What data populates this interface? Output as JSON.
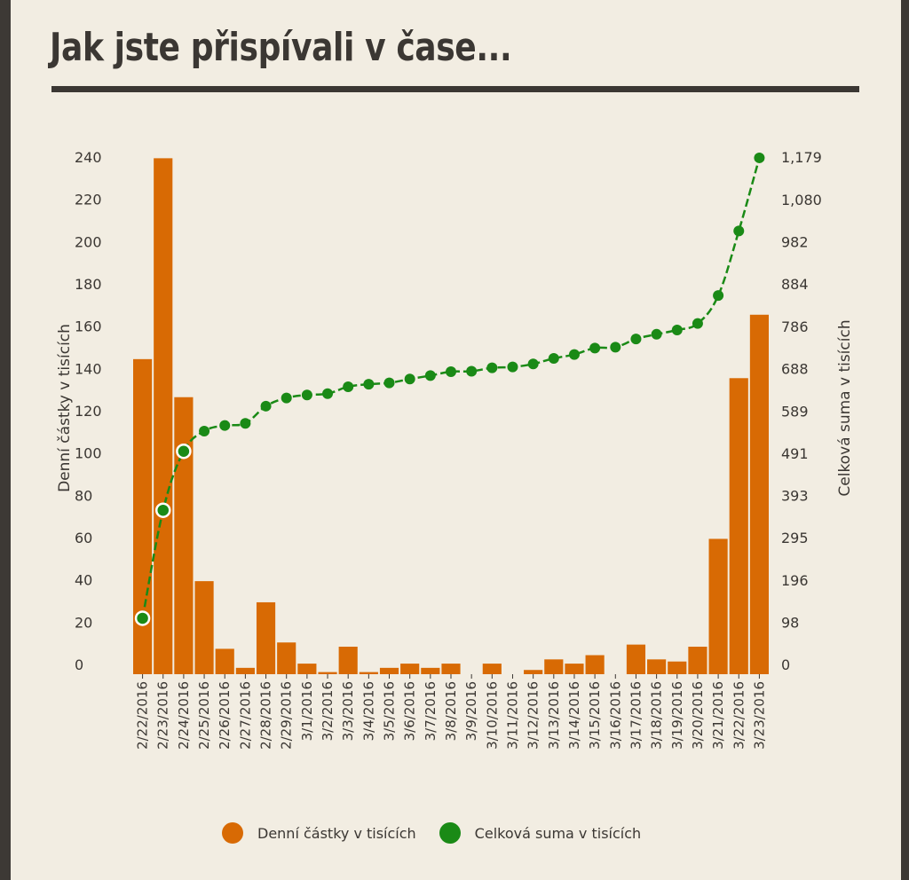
{
  "page": {
    "title": "Jak jste přispívali v čase..."
  },
  "colors": {
    "bar": "#d86a04",
    "line": "#1a8a16",
    "text": "#3b3733",
    "background": "#f2ede2"
  },
  "chart_data": {
    "type": "bar",
    "title": "Jak jste přispívali v čase...",
    "categories": [
      "2/22/2016",
      "2/23/2016",
      "2/24/2016",
      "2/25/2016",
      "2/26/2016",
      "2/27/2016",
      "2/28/2016",
      "2/29/2016",
      "3/1/2016",
      "3/2/2016",
      "3/3/2016",
      "3/4/2016",
      "3/5/2016",
      "3/6/2016",
      "3/7/2016",
      "3/8/2016",
      "3/9/2016",
      "3/10/2016",
      "3/11/2016",
      "3/12/2016",
      "3/13/2016",
      "3/14/2016",
      "3/15/2016",
      "3/16/2016",
      "3/17/2016",
      "3/18/2016",
      "3/19/2016",
      "3/20/2016",
      "3/21/2016",
      "3/22/2016",
      "3/23/2016"
    ],
    "series": [
      {
        "name": "Denní částky v tisících",
        "type": "bar",
        "axis": "left",
        "values": [
          149,
          244,
          131,
          44,
          12,
          3,
          34,
          15,
          5,
          1,
          13,
          1,
          3,
          5,
          3,
          5,
          0,
          5,
          0,
          2,
          7,
          5,
          9,
          0,
          14,
          7,
          6,
          13,
          64,
          140,
          170
        ]
      },
      {
        "name": "Celková suma v tisících",
        "type": "line",
        "axis": "right",
        "values": [
          130,
          381,
          518,
          565,
          578,
          583,
          623,
          642,
          649,
          652,
          668,
          674,
          677,
          686,
          694,
          703,
          704,
          712,
          714,
          721,
          734,
          743,
          758,
          760,
          779,
          790,
          800,
          815,
          880,
          1030,
          1200
        ]
      }
    ],
    "y_left": {
      "label": "Denní částky v tisících",
      "ticks": [
        "0",
        "20",
        "40",
        "60",
        "80",
        "100",
        "120",
        "140",
        "160",
        "180",
        "200",
        "220",
        "240"
      ],
      "range": [
        0,
        245
      ]
    },
    "y_right": {
      "label": "Celková suma v tisících",
      "ticks": [
        "0",
        "98",
        "196",
        "295",
        "393",
        "491",
        "589",
        "688",
        "786",
        "884",
        "982",
        "1,080",
        "1,179"
      ],
      "range": [
        0,
        1204
      ]
    },
    "legend": {
      "position": "bottom"
    },
    "grid": false
  }
}
